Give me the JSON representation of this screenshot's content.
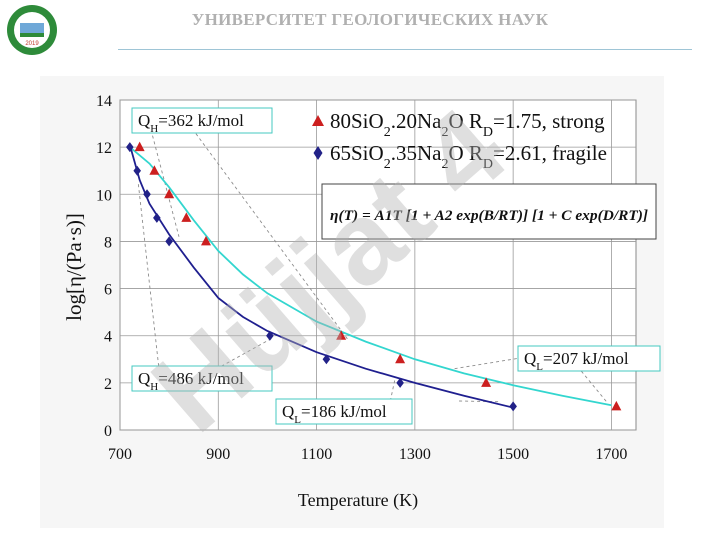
{
  "header": {
    "university": "УНИВЕРСИТЕТ ГЕОЛОГИЧЕСКИХ НАУК",
    "logo_year": "2019",
    "logo_ring_color": "#2e8b3a"
  },
  "watermark": {
    "text": "Hüjjat 4",
    "color": "#b3b3b3"
  },
  "chart_data": {
    "type": "scatter",
    "xlabel": "Temperature (K)",
    "ylabel": "log[η/(Pa·s)]",
    "xlim": [
      700,
      1750
    ],
    "ylim": [
      0,
      14
    ],
    "x_ticks": [
      700,
      900,
      1100,
      1300,
      1500,
      1700
    ],
    "y_ticks": [
      0,
      2,
      4,
      6,
      8,
      10,
      12,
      14
    ],
    "grid": true,
    "legend_position": "top-right",
    "equation": "η(T) = A1T [1 + A2 exp(B/RT)] [1 + C exp(D/RT)]",
    "series": [
      {
        "name_parts": [
          "80SiO",
          "2",
          ".20Na",
          "2",
          "O R",
          "D",
          "=1.75, strong"
        ],
        "marker": "triangle",
        "marker_color": "#cc1f1f",
        "fit_color": "#33d6cf",
        "points": [
          [
            740,
            12.0
          ],
          [
            770,
            11.0
          ],
          [
            800,
            10.0
          ],
          [
            835,
            9.0
          ],
          [
            875,
            8.0
          ],
          [
            1150,
            4.0
          ],
          [
            1270,
            3.0
          ],
          [
            1445,
            2.0
          ],
          [
            1710,
            1.0
          ]
        ],
        "fit": [
          [
            720,
            12.0
          ],
          [
            760,
            11.3
          ],
          [
            800,
            10.3
          ],
          [
            850,
            8.9
          ],
          [
            900,
            7.6
          ],
          [
            950,
            6.6
          ],
          [
            1000,
            5.8
          ],
          [
            1100,
            4.6
          ],
          [
            1200,
            3.75
          ],
          [
            1300,
            3.0
          ],
          [
            1400,
            2.4
          ],
          [
            1500,
            1.9
          ],
          [
            1600,
            1.45
          ],
          [
            1700,
            1.05
          ]
        ]
      },
      {
        "name_parts": [
          "65SiO",
          "2",
          ".35Na",
          "2",
          "O R",
          "D",
          "=2.61, fragile"
        ],
        "marker": "diamond",
        "marker_color": "#222288",
        "fit_color": "#1f1f8f",
        "points": [
          [
            720,
            12.0
          ],
          [
            735,
            11.0
          ],
          [
            755,
            10.0
          ],
          [
            775,
            9.0
          ],
          [
            800,
            8.0
          ],
          [
            1005,
            4.0
          ],
          [
            1120,
            3.0
          ],
          [
            1270,
            2.0
          ],
          [
            1500,
            1.0
          ]
        ],
        "fit": [
          [
            720,
            12.1
          ],
          [
            740,
            10.6
          ],
          [
            760,
            9.6
          ],
          [
            800,
            8.3
          ],
          [
            850,
            6.9
          ],
          [
            900,
            5.6
          ],
          [
            950,
            4.8
          ],
          [
            1000,
            4.2
          ],
          [
            1050,
            3.75
          ],
          [
            1100,
            3.3
          ],
          [
            1200,
            2.6
          ],
          [
            1300,
            2.0
          ],
          [
            1400,
            1.45
          ],
          [
            1500,
            0.95
          ]
        ]
      }
    ],
    "annotations": [
      {
        "id": "qh1",
        "sub": "H",
        "value": "=362 kJ/mol"
      },
      {
        "id": "qh2",
        "sub": "H",
        "value": "=486 kJ/mol"
      },
      {
        "id": "ql1",
        "sub": "L",
        "value": "=186 kJ/mol"
      },
      {
        "id": "ql2",
        "sub": "L",
        "value": "=207 kJ/mol"
      }
    ]
  }
}
